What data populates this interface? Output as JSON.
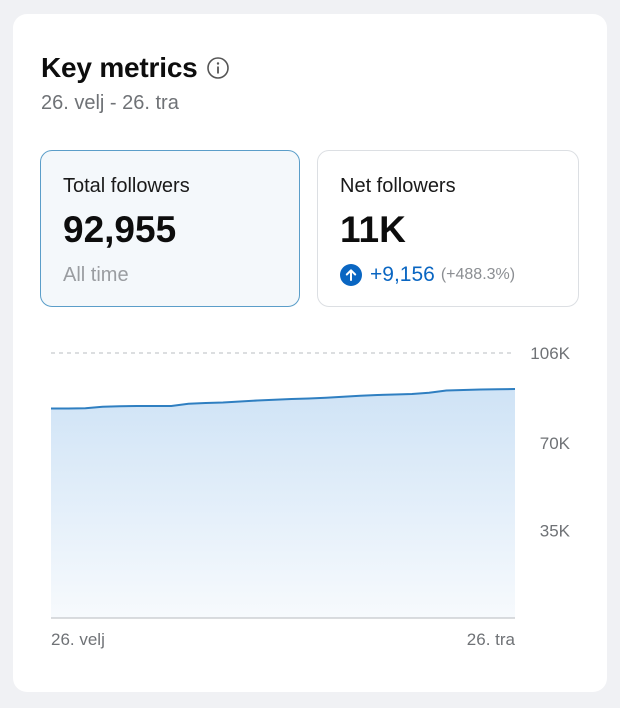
{
  "header": {
    "title": "Key metrics",
    "date_range": "26. velj - 26. tra"
  },
  "metrics": [
    {
      "label": "Total followers",
      "value": "92,955",
      "footnote": "All time",
      "selected": true
    },
    {
      "label": "Net followers",
      "value": "11K",
      "delta": "+9,156",
      "delta_pct": "(+488.3%)",
      "direction": "up"
    }
  ],
  "colors": {
    "accent": "#0a66c2",
    "line": "#2f7fc1",
    "area_top": "#cfe3f6",
    "selected_border": "#5b9ec9"
  },
  "icons": {
    "info": "info-icon",
    "trend": "arrow-up-circle-icon"
  },
  "chart_data": {
    "type": "area",
    "ylim": [
      0,
      106000
    ],
    "y_ticks": [
      {
        "value": 106000,
        "label": "106K"
      },
      {
        "value": 70000,
        "label": "70K"
      },
      {
        "value": 35000,
        "label": "35K"
      }
    ],
    "x_labels": [
      "26. velj",
      "26. tra"
    ],
    "grid": true,
    "series": [
      {
        "values": [
          83800,
          83800,
          83900,
          84500,
          84700,
          84800,
          84800,
          84800,
          85700,
          86000,
          86200,
          86600,
          87000,
          87300,
          87600,
          87800,
          88100,
          88500,
          88900,
          89200,
          89400,
          89600,
          90100,
          91000,
          91200,
          91400,
          91500,
          91600
        ]
      }
    ]
  }
}
